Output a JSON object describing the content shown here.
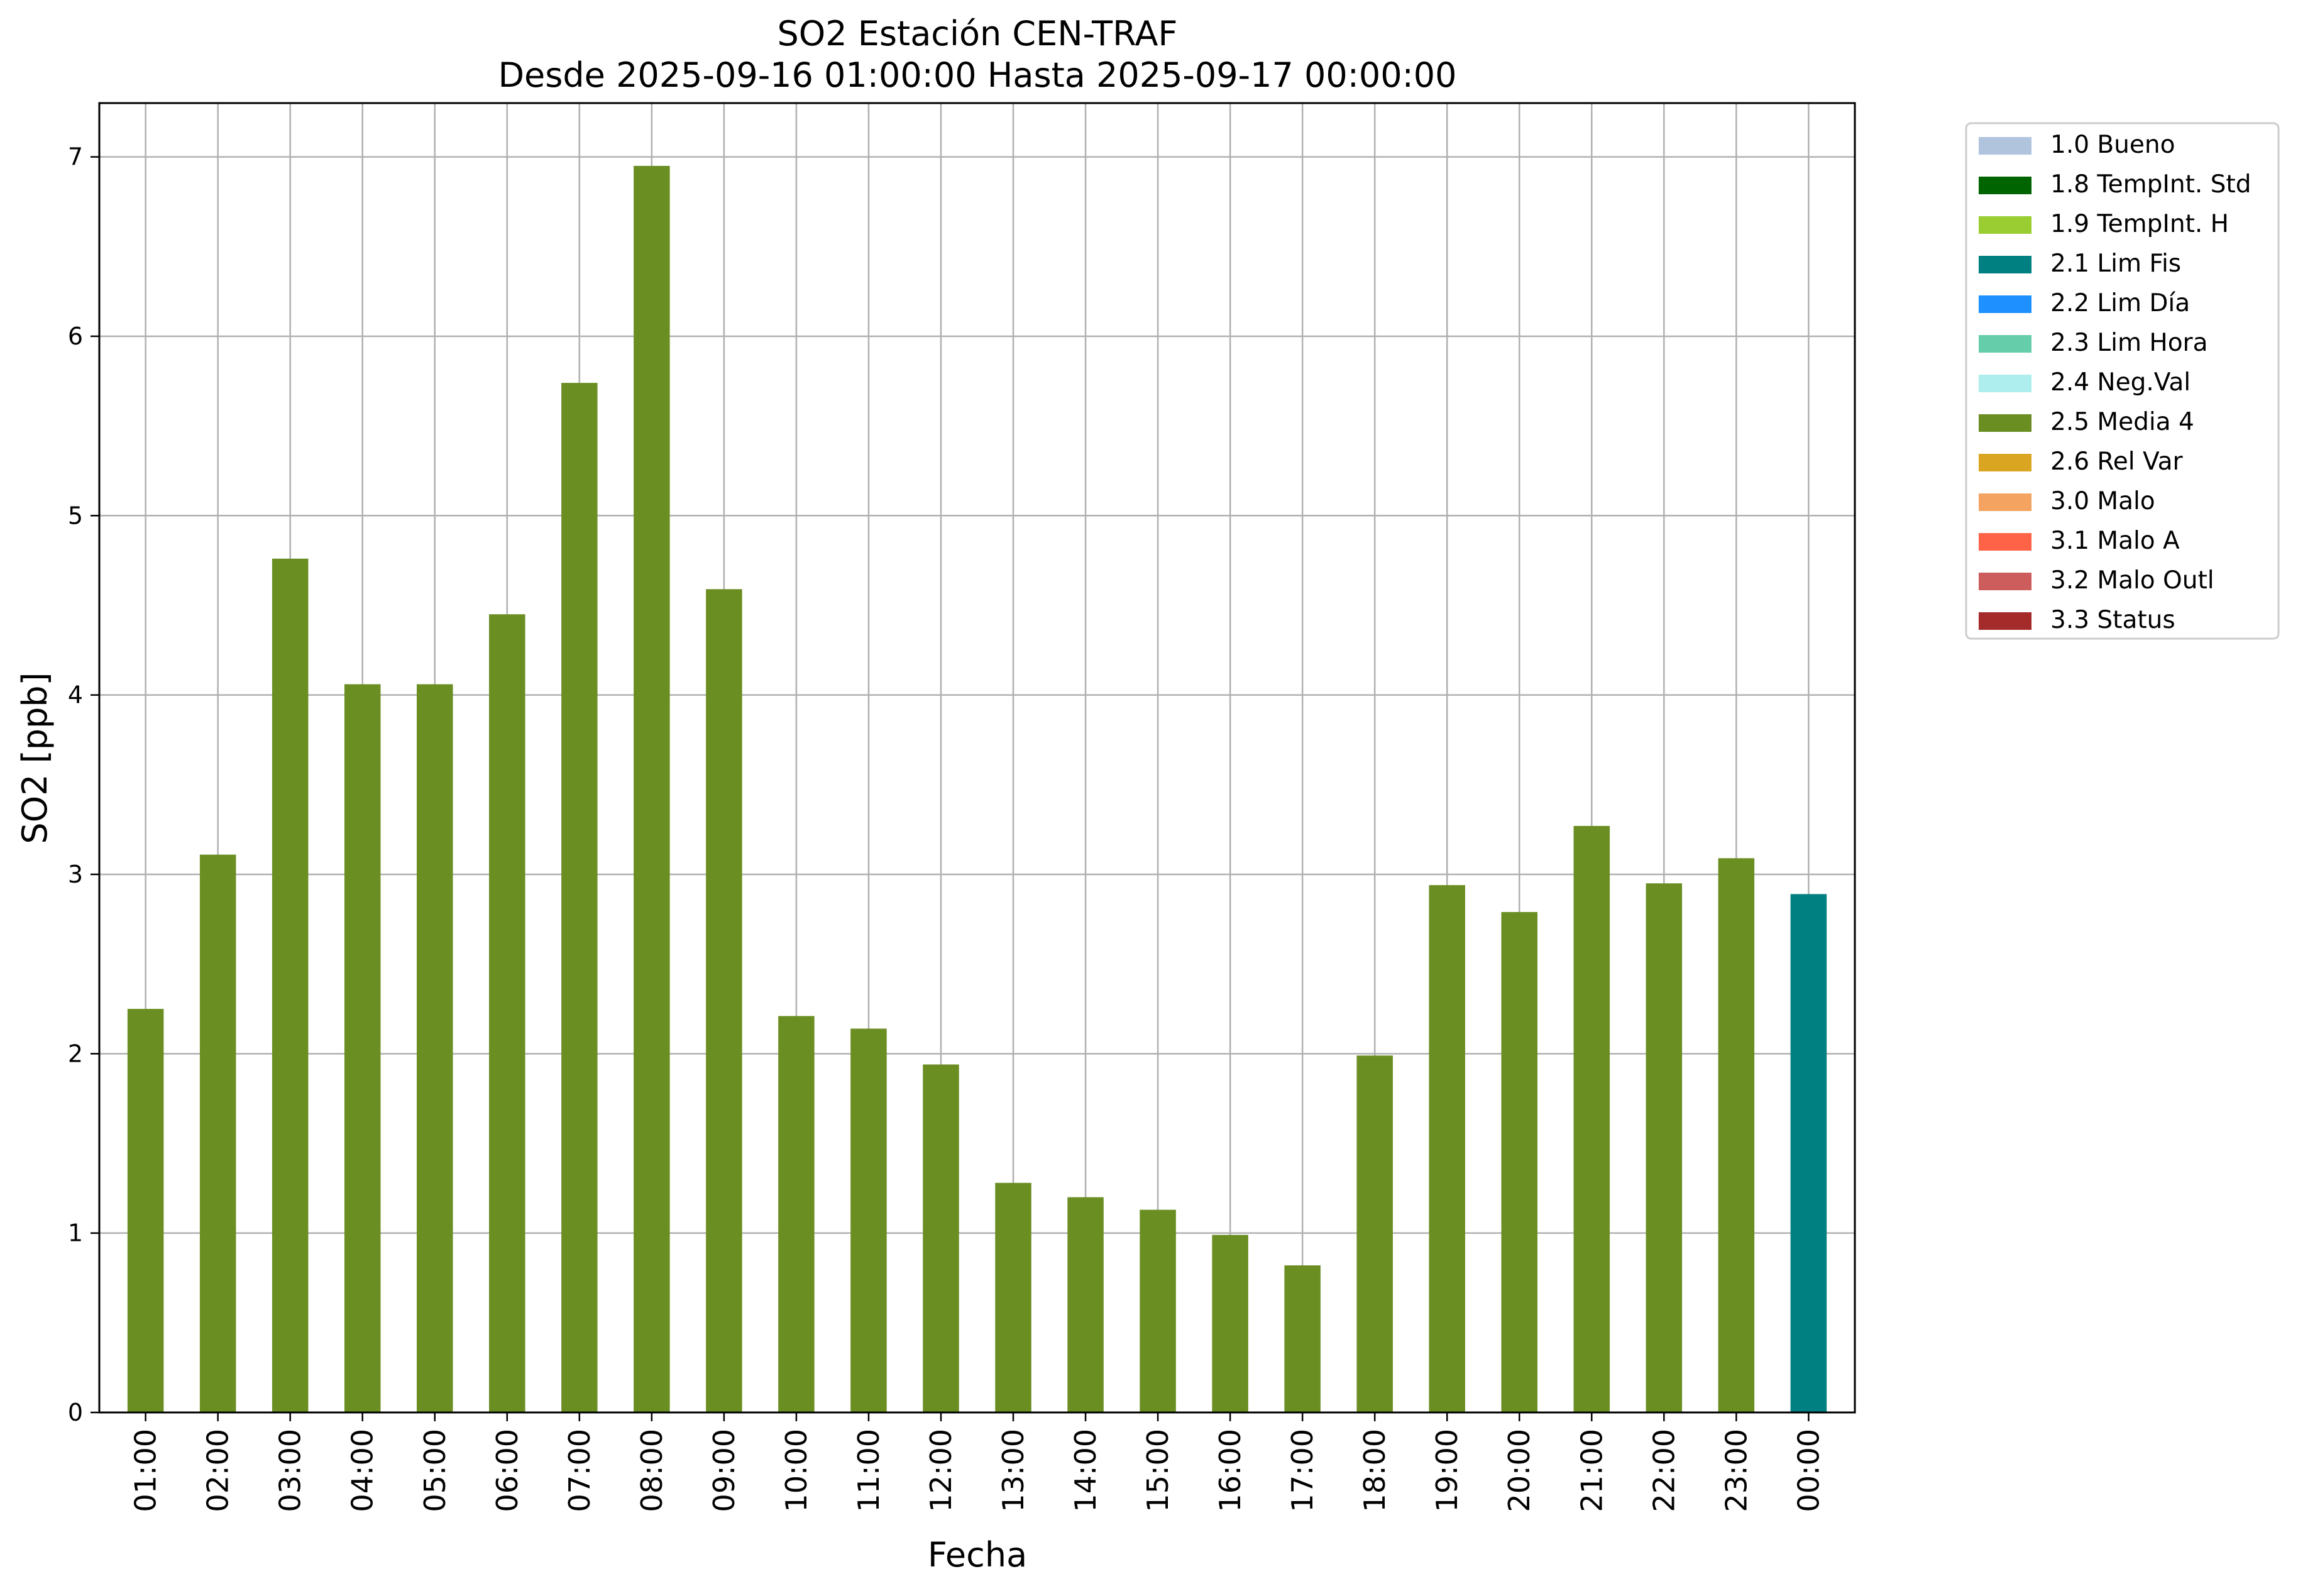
{
  "chart_data": {
    "type": "bar",
    "title": "SO2 Estación CEN-TRAF",
    "subtitle": "Desde 2025-09-16 01:00:00 Hasta 2025-09-17 00:00:00",
    "xlabel": "Fecha",
    "ylabel": "SO2 [ppb]",
    "ylim": [
      0,
      7.3
    ],
    "yticks": [
      0,
      1,
      2,
      3,
      4,
      5,
      6,
      7
    ],
    "grid": true,
    "legend_position": "outside-right-top",
    "categories": [
      "01:00",
      "02:00",
      "03:00",
      "04:00",
      "05:00",
      "06:00",
      "07:00",
      "08:00",
      "09:00",
      "10:00",
      "11:00",
      "12:00",
      "13:00",
      "14:00",
      "15:00",
      "16:00",
      "17:00",
      "18:00",
      "19:00",
      "20:00",
      "21:00",
      "22:00",
      "23:00",
      "00:00"
    ],
    "values": [
      2.25,
      3.11,
      4.76,
      4.06,
      4.06,
      4.45,
      5.74,
      6.95,
      4.59,
      2.21,
      2.14,
      1.94,
      1.28,
      1.2,
      1.13,
      0.99,
      0.82,
      1.99,
      2.94,
      2.79,
      3.27,
      2.95,
      3.09,
      2.89
    ],
    "bar_flags": [
      "2.5 Media 4",
      "2.5 Media 4",
      "2.5 Media 4",
      "2.5 Media 4",
      "2.5 Media 4",
      "2.5 Media 4",
      "2.5 Media 4",
      "2.5 Media 4",
      "2.5 Media 4",
      "2.5 Media 4",
      "2.5 Media 4",
      "2.5 Media 4",
      "2.5 Media 4",
      "2.5 Media 4",
      "2.5 Media 4",
      "2.5 Media 4",
      "2.5 Media 4",
      "2.5 Media 4",
      "2.5 Media 4",
      "2.5 Media 4",
      "2.5 Media 4",
      "2.5 Media 4",
      "2.5 Media 4",
      "2.1 Lim Fis"
    ],
    "legend": [
      {
        "label": "1.0 Bueno",
        "color": "#b0c4de"
      },
      {
        "label": "1.8 TempInt. Std",
        "color": "#006400"
      },
      {
        "label": "1.9 TempInt. H",
        "color": "#9acd32"
      },
      {
        "label": "2.1 Lim Fis",
        "color": "#008080"
      },
      {
        "label": "2.2 Lim Día",
        "color": "#1e90ff"
      },
      {
        "label": "2.3 Lim Hora",
        "color": "#66cdaa"
      },
      {
        "label": "2.4 Neg.Val",
        "color": "#afeeee"
      },
      {
        "label": "2.5 Media 4",
        "color": "#6b8e23"
      },
      {
        "label": "2.6 Rel Var",
        "color": "#daa520"
      },
      {
        "label": "3.0 Malo",
        "color": "#f4a460"
      },
      {
        "label": "3.1 Malo A",
        "color": "#ff6347"
      },
      {
        "label": "3.2 Malo Outl",
        "color": "#cd5c5c"
      },
      {
        "label": "3.3 Status",
        "color": "#a52a2a"
      }
    ]
  }
}
